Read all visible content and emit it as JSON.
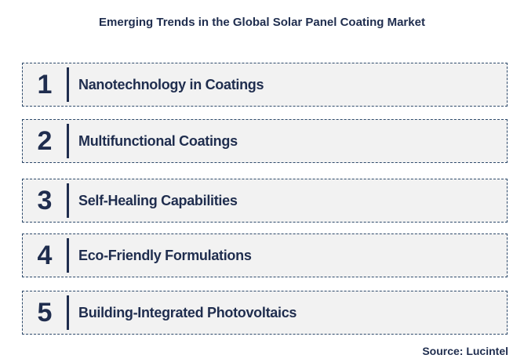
{
  "title": "Emerging Trends in the Global Solar Panel Coating Market",
  "items": [
    {
      "number": "1",
      "label": "Nanotechnology in Coatings"
    },
    {
      "number": "2",
      "label": "Multifunctional Coatings"
    },
    {
      "number": "3",
      "label": "Self-Healing Capabilities"
    },
    {
      "number": "4",
      "label": "Eco-Friendly Formulations"
    },
    {
      "number": "5",
      "label": "Building-Integrated Photovoltaics"
    }
  ],
  "source": "Source: Lucintel",
  "colors": {
    "text": "#1f2d4e",
    "box_fill": "#f2f2f2",
    "box_border": "#2e4a6b"
  }
}
